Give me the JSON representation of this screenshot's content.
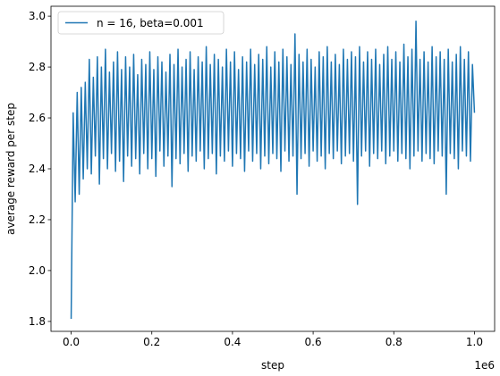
{
  "chart_data": {
    "type": "line",
    "x_label": "step",
    "y_label": "average reward per step",
    "x_offset_label": "1e6",
    "xlim": [
      -50000,
      1050000
    ],
    "ylim": [
      1.761,
      3.039
    ],
    "xticks": [
      {
        "value": 0,
        "label": "0.0"
      },
      {
        "value": 200000,
        "label": "0.2"
      },
      {
        "value": 400000,
        "label": "0.4"
      },
      {
        "value": 600000,
        "label": "0.6"
      },
      {
        "value": 800000,
        "label": "0.8"
      },
      {
        "value": 1000000,
        "label": "1.0"
      }
    ],
    "yticks": [
      1.8,
      {
        "value": 2,
        "label": "2.0"
      },
      2.2,
      2.4,
      2.6,
      2.8,
      {
        "value": 3,
        "label": "3.0"
      }
    ],
    "grid": false,
    "legend": "upper left",
    "x": [
      0,
      5000,
      10000,
      15000,
      20000,
      25000,
      30000,
      35000,
      40000,
      45000,
      50000,
      55000,
      60000,
      65000,
      70000,
      75000,
      80000,
      85000,
      90000,
      95000,
      100000,
      105000,
      110000,
      115000,
      120000,
      125000,
      130000,
      135000,
      140000,
      145000,
      150000,
      155000,
      160000,
      165000,
      170000,
      175000,
      180000,
      185000,
      190000,
      195000,
      200000,
      205000,
      210000,
      215000,
      220000,
      225000,
      230000,
      235000,
      240000,
      245000,
      250000,
      255000,
      260000,
      265000,
      270000,
      275000,
      280000,
      285000,
      290000,
      295000,
      300000,
      305000,
      310000,
      315000,
      320000,
      325000,
      330000,
      335000,
      340000,
      345000,
      350000,
      355000,
      360000,
      365000,
      370000,
      375000,
      380000,
      385000,
      390000,
      395000,
      400000,
      405000,
      410000,
      415000,
      420000,
      425000,
      430000,
      435000,
      440000,
      445000,
      450000,
      455000,
      460000,
      465000,
      470000,
      475000,
      480000,
      485000,
      490000,
      495000,
      500000,
      505000,
      510000,
      515000,
      520000,
      525000,
      530000,
      535000,
      540000,
      545000,
      550000,
      555000,
      560000,
      565000,
      570000,
      575000,
      580000,
      585000,
      590000,
      595000,
      600000,
      605000,
      610000,
      615000,
      620000,
      625000,
      630000,
      635000,
      640000,
      645000,
      650000,
      655000,
      660000,
      665000,
      670000,
      675000,
      680000,
      685000,
      690000,
      695000,
      700000,
      705000,
      710000,
      715000,
      720000,
      725000,
      730000,
      735000,
      740000,
      745000,
      750000,
      755000,
      760000,
      765000,
      770000,
      775000,
      780000,
      785000,
      790000,
      795000,
      800000,
      805000,
      810000,
      815000,
      820000,
      825000,
      830000,
      835000,
      840000,
      845000,
      850000,
      855000,
      860000,
      865000,
      870000,
      875000,
      880000,
      885000,
      890000,
      895000,
      900000,
      905000,
      910000,
      915000,
      920000,
      925000,
      930000,
      935000,
      940000,
      945000,
      950000,
      955000,
      960000,
      965000,
      970000,
      975000,
      980000,
      985000,
      990000,
      995000,
      1000000
    ],
    "series": [
      {
        "name": "n = 16, beta=0.001",
        "color": "#1f77b4",
        "values": [
          1.81,
          2.62,
          2.27,
          2.7,
          2.3,
          2.72,
          2.36,
          2.74,
          2.4,
          2.83,
          2.38,
          2.76,
          2.45,
          2.84,
          2.34,
          2.8,
          2.44,
          2.87,
          2.4,
          2.78,
          2.46,
          2.82,
          2.39,
          2.86,
          2.43,
          2.79,
          2.35,
          2.84,
          2.45,
          2.8,
          2.41,
          2.85,
          2.44,
          2.77,
          2.38,
          2.83,
          2.46,
          2.81,
          2.4,
          2.86,
          2.44,
          2.79,
          2.37,
          2.84,
          2.47,
          2.82,
          2.41,
          2.78,
          2.45,
          2.85,
          2.33,
          2.81,
          2.44,
          2.87,
          2.42,
          2.8,
          2.46,
          2.83,
          2.39,
          2.86,
          2.45,
          2.79,
          2.43,
          2.84,
          2.47,
          2.82,
          2.4,
          2.88,
          2.44,
          2.81,
          2.46,
          2.85,
          2.38,
          2.83,
          2.45,
          2.8,
          2.43,
          2.87,
          2.47,
          2.82,
          2.41,
          2.86,
          2.46,
          2.79,
          2.44,
          2.84,
          2.39,
          2.82,
          2.47,
          2.87,
          2.43,
          2.81,
          2.46,
          2.85,
          2.4,
          2.83,
          2.45,
          2.88,
          2.42,
          2.8,
          2.46,
          2.86,
          2.44,
          2.82,
          2.39,
          2.87,
          2.47,
          2.84,
          2.43,
          2.81,
          2.45,
          2.93,
          2.3,
          2.85,
          2.44,
          2.82,
          2.46,
          2.87,
          2.41,
          2.83,
          2.47,
          2.8,
          2.43,
          2.86,
          2.45,
          2.84,
          2.4,
          2.88,
          2.46,
          2.82,
          2.44,
          2.85,
          2.47,
          2.81,
          2.42,
          2.87,
          2.45,
          2.83,
          2.46,
          2.86,
          2.43,
          2.84,
          2.26,
          2.88,
          2.45,
          2.82,
          2.47,
          2.86,
          2.41,
          2.83,
          2.46,
          2.87,
          2.44,
          2.81,
          2.47,
          2.85,
          2.42,
          2.88,
          2.45,
          2.83,
          2.47,
          2.86,
          2.43,
          2.82,
          2.46,
          2.89,
          2.44,
          2.84,
          2.4,
          2.87,
          2.45,
          2.98,
          2.47,
          2.83,
          2.43,
          2.86,
          2.46,
          2.82,
          2.44,
          2.88,
          2.42,
          2.84,
          2.47,
          2.86,
          2.45,
          2.83,
          2.3,
          2.87,
          2.46,
          2.82,
          2.44,
          2.85,
          2.4,
          2.88,
          2.47,
          2.83,
          2.45,
          2.86,
          2.43,
          2.81,
          2.62
        ]
      }
    ]
  }
}
